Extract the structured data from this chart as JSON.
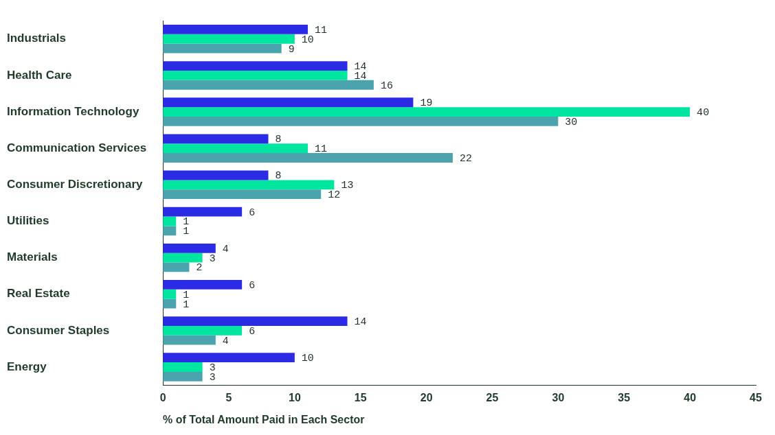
{
  "chart_data": {
    "type": "bar",
    "orientation": "horizontal",
    "xlabel": "% of Total Amount Paid in Each Sector",
    "categories": [
      "Industrials",
      "Health Care",
      "Information Technology",
      "Communication Services",
      "Consumer Discretionary",
      "Utilities",
      "Materials",
      "Real Estate",
      "Consumer Staples",
      "Energy"
    ],
    "series": [
      {
        "color": "#2b2be6",
        "values": [
          11,
          14,
          19,
          8,
          8,
          6,
          4,
          6,
          14,
          10
        ]
      },
      {
        "color": "#00e5a0",
        "values": [
          10,
          14,
          40,
          11,
          13,
          1,
          3,
          1,
          6,
          3
        ]
      },
      {
        "color": "#4aa3ad",
        "values": [
          9,
          16,
          30,
          22,
          12,
          1,
          2,
          1,
          4,
          3
        ]
      }
    ],
    "xlim": [
      0,
      45
    ],
    "xticks": [
      0,
      5,
      10,
      15,
      20,
      25,
      30,
      35,
      40,
      45
    ],
    "grid": false,
    "legend": false,
    "data_labels": true
  }
}
